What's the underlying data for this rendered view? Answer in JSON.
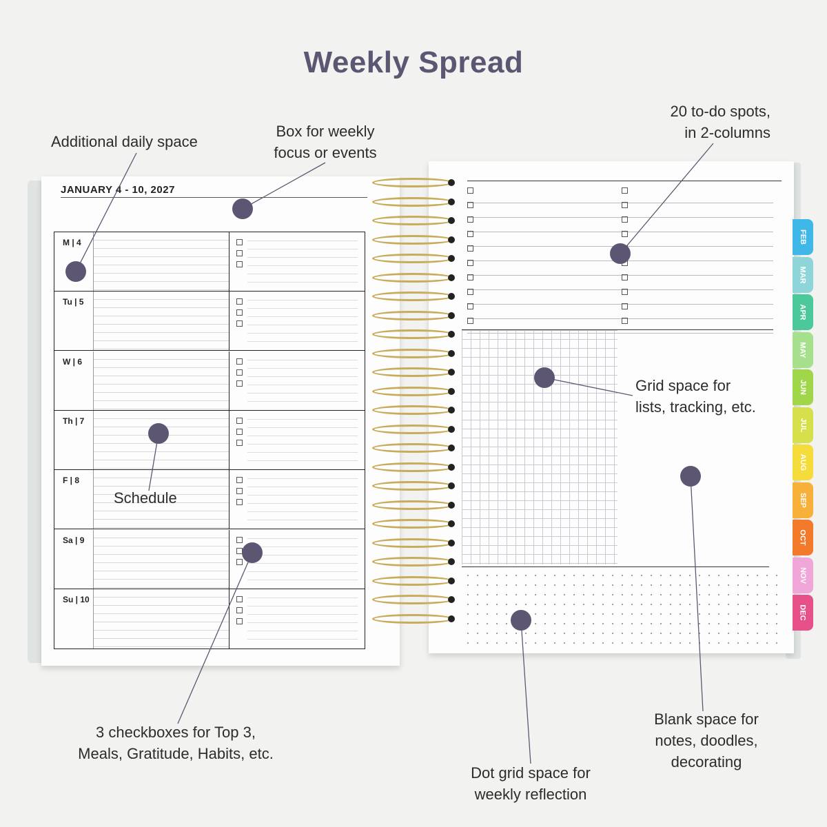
{
  "title": "Weekly Spread",
  "labels": {
    "additional_daily": "Additional daily space",
    "weekly_focus": "Box for weekly\nfocus or events",
    "todo_spots": "20 to-do spots,\nin 2-columns",
    "grid_space": "Grid space for\nlists, tracking, etc.",
    "schedule": "Schedule",
    "blank_space": "Blank space for\nnotes, doodles,\ndecorating",
    "checkboxes": "3 checkboxes for Top 3,\nMeals, Gratitude, Habits, etc.",
    "dot_grid": "Dot grid space for\nweekly reflection"
  },
  "planner": {
    "week_heading": "JANUARY 4 - 10, 2027",
    "days": [
      "M | 4",
      "Tu | 5",
      "W | 6",
      "Th | 7",
      "F | 8",
      "Sa | 9",
      "Su | 10"
    ],
    "month_tabs": [
      "FEB",
      "MAR",
      "APR",
      "MAY",
      "JUN",
      "JUL",
      "AUG",
      "SEP",
      "OCT",
      "NOV",
      "DEC"
    ],
    "tab_colors": [
      "#3fb8e8",
      "#8dd5d8",
      "#4cc99a",
      "#a6e08c",
      "#9fd64a",
      "#d6e04a",
      "#f5dc3a",
      "#f7b03a",
      "#f27a2a",
      "#f0a6d8",
      "#e8508a"
    ]
  },
  "colors": {
    "accent": "#5d5672",
    "ring_gold": "#c8ac5c"
  }
}
